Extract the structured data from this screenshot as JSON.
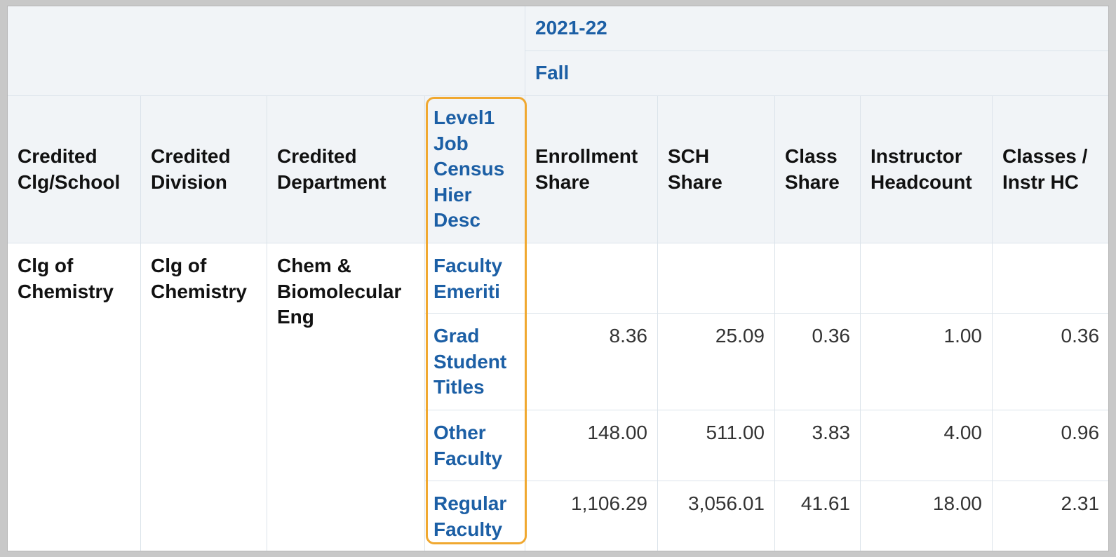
{
  "header": {
    "year": "2021-22",
    "term": "Fall"
  },
  "columns": {
    "college": "Credited Clg/School",
    "division": "Credited Division",
    "department": "Credited Department",
    "level1": "Level1 Job Census Hier Desc",
    "enrollment_share": "Enrollment Share",
    "sch_share": "SCH Share",
    "class_share": "Class Share",
    "instructor_headcount": "Instructor Headcount",
    "classes_per_instr": "Classes / Instr HC"
  },
  "group": {
    "college": "Clg of Chemistry",
    "division": "Clg of Chemistry",
    "department": "Chem & Biomolecular Eng"
  },
  "rows": [
    {
      "level1": "Faculty Emeriti",
      "enrollment_share": "",
      "sch_share": "",
      "class_share": "",
      "instructor_headcount": "",
      "classes_per_instr": ""
    },
    {
      "level1": "Grad Student Titles",
      "enrollment_share": "8.36",
      "sch_share": "25.09",
      "class_share": "0.36",
      "instructor_headcount": "1.00",
      "classes_per_instr": "0.36"
    },
    {
      "level1": "Other Faculty",
      "enrollment_share": "148.00",
      "sch_share": "511.00",
      "class_share": "3.83",
      "instructor_headcount": "4.00",
      "classes_per_instr": "0.96"
    },
    {
      "level1": "Regular Faculty",
      "enrollment_share": "1,106.29",
      "sch_share": "3,056.01",
      "class_share": "41.61",
      "instructor_headcount": "18.00",
      "classes_per_instr": "2.31"
    }
  ],
  "colors": {
    "link": "#1c5fa5",
    "header_bg": "#f1f4f7",
    "highlight": "#f0a830"
  }
}
